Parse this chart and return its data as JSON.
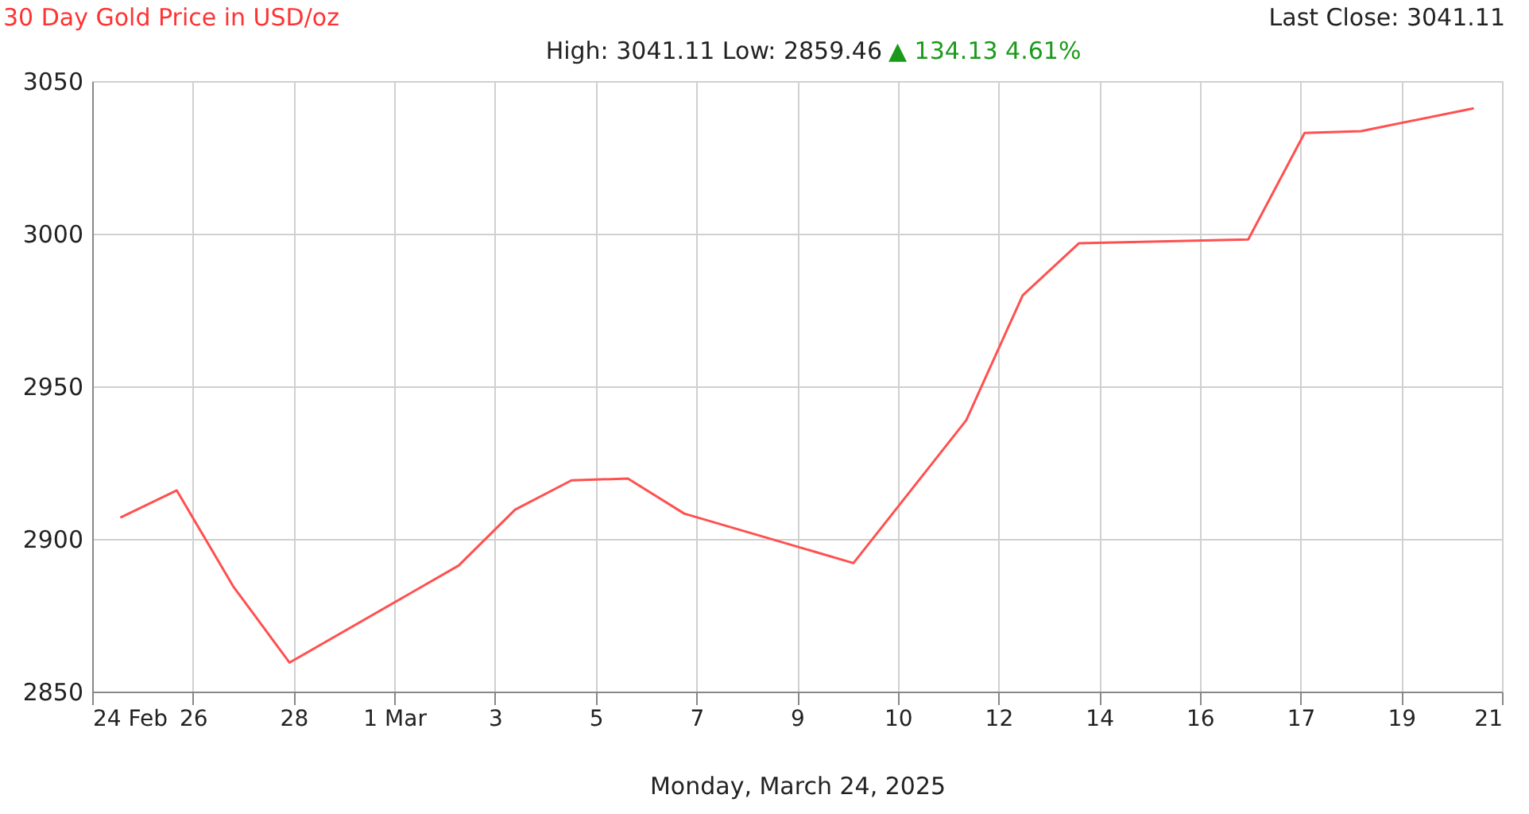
{
  "chart_data": {
    "type": "line",
    "title": "30 Day Gold Price in USD/oz",
    "subtitle": "High: 3041.11 Low: 2859.46",
    "xlabel": "Monday, March 24, 2025",
    "annotations": [
      "▲ 134.13 4.61%",
      "Last Close: 3041.11"
    ],
    "series": [
      {
        "color": "#ff5050",
        "x": [
          "2025-02-25T00:00",
          "2025-02-26T00:00",
          "2025-02-27T00:00",
          "2025-02-28T00:00",
          "2025-03-03T00:00",
          "2025-03-04T00:00",
          "2025-03-05T00:00",
          "2025-03-06T00:00",
          "2025-03-07T00:00",
          "2025-03-10T00:00",
          "2025-03-12T00:00",
          "2025-03-13T00:00",
          "2025-03-14T00:00",
          "2025-03-17T00:00",
          "2025-03-18T00:00",
          "2025-03-19T00:00",
          "2025-03-21T00:00"
        ],
        "values": [
          2907.0,
          2915.9,
          2884.5,
          2859.5,
          2891.3,
          2909.6,
          2919.2,
          2919.8,
          2908.3,
          2892.1,
          2938.9,
          2979.8,
          2996.9,
          2998.1,
          3033.0,
          3033.6,
          3041.1
        ]
      }
    ],
    "xlim": [
      "2025-02-24T12:00",
      "2025-03-21T12:00"
    ],
    "ylim": [
      2850,
      3050
    ],
    "xticks": [
      {
        "value": "2025-02-24T12:00",
        "label": "24 Feb"
      },
      {
        "value": "2025-02-26T06:51",
        "label": "26"
      },
      {
        "value": "2025-02-28T01:43",
        "label": "28"
      },
      {
        "value": "2025-03-01T20:34",
        "label": "1 Mar"
      },
      {
        "value": "2025-03-03T15:26",
        "label": "3"
      },
      {
        "value": "2025-03-05T10:17",
        "label": "5"
      },
      {
        "value": "2025-03-07T05:09",
        "label": "7"
      },
      {
        "value": "2025-03-09T00:00",
        "label": "9"
      },
      {
        "value": "2025-03-10T18:51",
        "label": "10"
      },
      {
        "value": "2025-03-12T13:43",
        "label": "12"
      },
      {
        "value": "2025-03-14T08:34",
        "label": "14"
      },
      {
        "value": "2025-03-16T03:26",
        "label": "16"
      },
      {
        "value": "2025-03-17T22:17",
        "label": "17"
      },
      {
        "value": "2025-03-19T17:09",
        "label": "19"
      },
      {
        "value": "2025-03-21T12:00",
        "label": "21"
      }
    ],
    "yticks": [
      2850,
      2900,
      2950,
      3000,
      3050
    ],
    "grid": true,
    "legend": false,
    "marker": "none",
    "line_style": "solid"
  }
}
